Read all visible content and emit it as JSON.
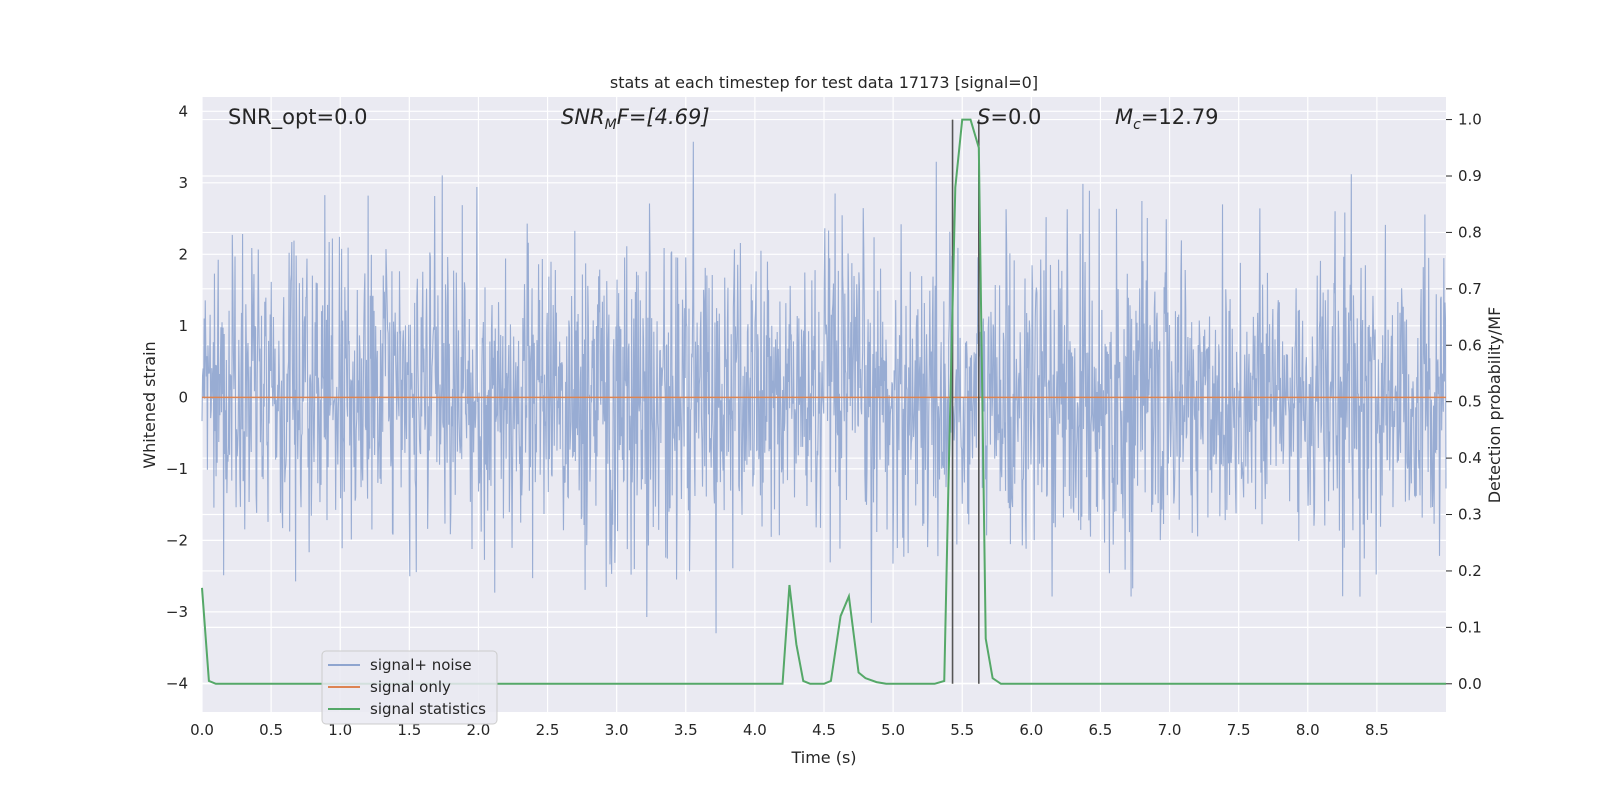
{
  "chart_data": {
    "type": "line",
    "title": "stats at each timestep for test data 17173 [signal=0]",
    "xlabel": "Time (s)",
    "ylabel_left": "Whitened strain",
    "ylabel_right": "Detection probability/MF",
    "xlim": [
      0.0,
      9.0
    ],
    "ylim_left": [
      -4.4,
      4.2
    ],
    "ylim_right": [
      -0.05,
      1.04
    ],
    "x_ticks": [
      "0.0",
      "0.5",
      "1.0",
      "1.5",
      "2.0",
      "2.5",
      "3.0",
      "3.5",
      "4.0",
      "4.5",
      "5.0",
      "5.5",
      "6.0",
      "6.5",
      "7.0",
      "7.5",
      "8.0",
      "8.5"
    ],
    "y_ticks_left": [
      "−4",
      "−3",
      "−2",
      "−1",
      "0",
      "1",
      "2",
      "3",
      "4"
    ],
    "y_ticks_right": [
      "0.0",
      "0.1",
      "0.2",
      "0.3",
      "0.4",
      "0.5",
      "0.6",
      "0.7",
      "0.8",
      "0.9",
      "1.0"
    ],
    "grid": true,
    "legend_position": "lower-left",
    "annotations": {
      "snr_opt": "SNR_opt=0.0",
      "snr_mf_main": "SNR",
      "snr_mf_sub": "M",
      "snr_mf_tail": "F=[4.69]",
      "s_main": "S",
      "s_tail": "=0.0",
      "mc_main": "M",
      "mc_sub": "c",
      "mc_tail": "=12.79"
    },
    "vertical_lines_x": [
      5.43,
      5.62
    ],
    "series": [
      {
        "name": "signal+ noise",
        "color": "#8fa5cf",
        "description_values": {
          "min": -4.1,
          "max": 3.8
        }
      },
      {
        "name": "signal only",
        "color": "#dd8452",
        "x": [
          0.0,
          9.0
        ],
        "y": [
          0.0,
          0.0
        ]
      },
      {
        "name": "signal statistics",
        "color": "#55a868",
        "axis": "right",
        "x": [
          0.0,
          0.05,
          0.1,
          4.2,
          4.25,
          4.3,
          4.35,
          4.4,
          4.5,
          4.55,
          4.62,
          4.68,
          4.75,
          4.8,
          4.88,
          4.95,
          5.0,
          5.1,
          5.2,
          5.3,
          5.37,
          5.4,
          5.45,
          5.5,
          5.56,
          5.62,
          5.67,
          5.72,
          5.78,
          9.0
        ],
        "y": [
          0.17,
          0.005,
          0.0,
          0.0,
          0.175,
          0.07,
          0.005,
          0.0,
          0.0,
          0.005,
          0.12,
          0.155,
          0.02,
          0.01,
          0.003,
          0.0,
          0.0,
          0.0,
          0.0,
          0.0,
          0.005,
          0.35,
          0.88,
          1.0,
          1.0,
          0.95,
          0.08,
          0.01,
          0.0,
          0.0
        ]
      }
    ]
  }
}
